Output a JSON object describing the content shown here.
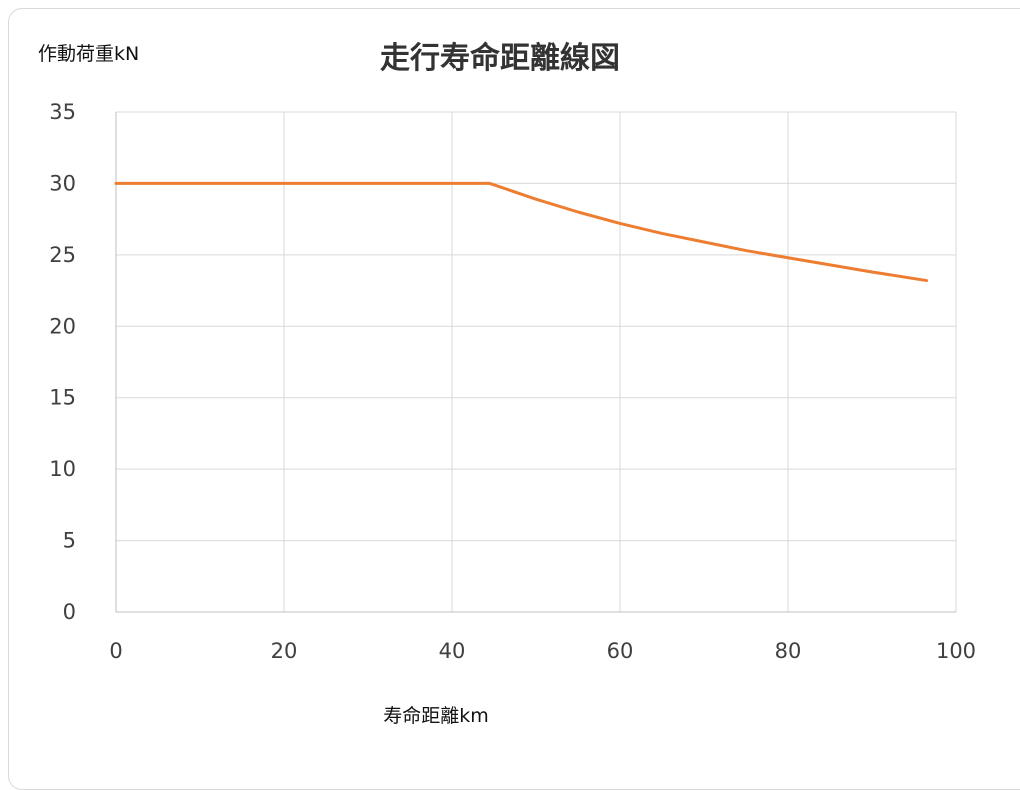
{
  "chart_data": {
    "type": "line",
    "title": "走行寿命距離線図",
    "ylabel": "作動荷重kN",
    "xlabel": "寿命距離km",
    "xlim": [
      0,
      100
    ],
    "ylim": [
      0,
      35
    ],
    "x_ticks": [
      0,
      20,
      40,
      60,
      80,
      100
    ],
    "y_ticks": [
      0,
      5,
      10,
      15,
      20,
      25,
      30,
      35
    ],
    "grid": true,
    "legend": "none",
    "series": [
      {
        "color": "#ED7D31",
        "x": [
          0,
          10,
          20,
          30,
          40,
          44.5,
          50,
          55,
          60,
          65,
          70,
          75,
          80,
          85,
          90,
          96.5
        ],
        "values": [
          30,
          30,
          30,
          30,
          30,
          30,
          28.9,
          28.0,
          27.2,
          26.5,
          25.9,
          25.3,
          24.8,
          24.3,
          23.8,
          23.2
        ]
      }
    ]
  }
}
